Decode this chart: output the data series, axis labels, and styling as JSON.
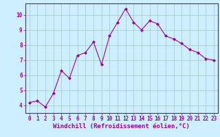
{
  "x": [
    0,
    1,
    2,
    3,
    4,
    5,
    6,
    7,
    8,
    9,
    10,
    11,
    12,
    13,
    14,
    15,
    16,
    17,
    18,
    19,
    20,
    21,
    22,
    23
  ],
  "y": [
    4.2,
    4.3,
    3.9,
    4.8,
    6.3,
    5.8,
    7.3,
    7.5,
    8.2,
    6.7,
    8.6,
    9.5,
    10.4,
    9.5,
    9.0,
    9.6,
    9.4,
    8.6,
    8.4,
    8.1,
    7.7,
    7.5,
    7.1,
    7.0
  ],
  "line_color": "#990099",
  "marker": "D",
  "marker_size": 2.0,
  "bg_color": "#cceeff",
  "grid_color": "#aacccc",
  "xlabel": "Windchill (Refroidissement éolien,°C)",
  "ylabel": "",
  "xlim": [
    -0.5,
    23.5
  ],
  "ylim": [
    3.5,
    10.75
  ],
  "yticks": [
    4,
    5,
    6,
    7,
    8,
    9,
    10
  ],
  "xticks": [
    0,
    1,
    2,
    3,
    4,
    5,
    6,
    7,
    8,
    9,
    10,
    11,
    12,
    13,
    14,
    15,
    16,
    17,
    18,
    19,
    20,
    21,
    22,
    23
  ],
  "tick_label_fontsize": 5.5,
  "xlabel_fontsize": 6.5
}
